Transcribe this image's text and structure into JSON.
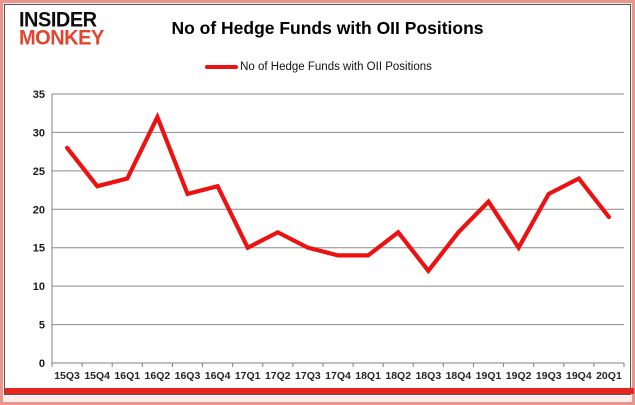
{
  "logo": {
    "line1": "INSIDER",
    "line2": "MONKEY"
  },
  "header": {
    "title": "No of Hedge Funds with OII Positions"
  },
  "legend": {
    "label": "No of Hedge Funds with OII Positions"
  },
  "colors": {
    "series_line": "#ed1212",
    "logo_black": "#0d0d0d",
    "logo_red": "#e2442e",
    "frame_border": "#e9958d",
    "bottom_bar": "#e6251c",
    "gridline": "#8a8a8a",
    "axis": "#808080"
  },
  "chart_data": {
    "type": "line",
    "title": "No of Hedge Funds with OII Positions",
    "categories": [
      "15Q3",
      "15Q4",
      "16Q1",
      "16Q2",
      "16Q3",
      "16Q4",
      "17Q1",
      "17Q2",
      "17Q3",
      "17Q4",
      "18Q1",
      "18Q2",
      "18Q3",
      "18Q4",
      "19Q1",
      "19Q2",
      "19Q3",
      "19Q4",
      "20Q1"
    ],
    "series": [
      {
        "name": "No of Hedge Funds with OII Positions",
        "color": "#ed1212",
        "values": [
          28,
          23,
          24,
          32,
          22,
          23,
          15,
          17,
          15,
          14,
          14,
          17,
          12,
          17,
          21,
          15,
          22,
          24,
          19
        ]
      }
    ],
    "xlabel": "",
    "ylabel": "",
    "ylim": [
      0,
      35
    ],
    "yticks": [
      0,
      5,
      10,
      15,
      20,
      25,
      30,
      35
    ],
    "grid": true,
    "legend_position": "top-center"
  }
}
